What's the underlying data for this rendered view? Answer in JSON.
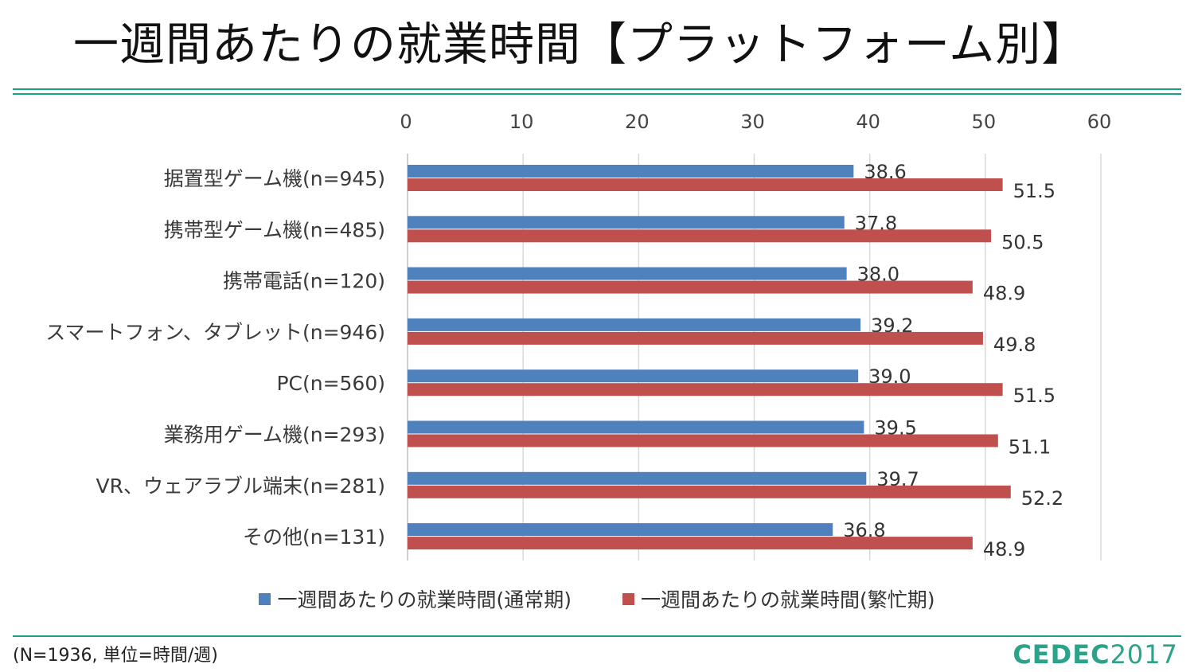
{
  "title": "一週間あたりの就業時間【プラットフォーム別】",
  "footnote": "(N=1936, 単位=時間/週)",
  "logo": {
    "mark": "CEDEC",
    "year": "2017"
  },
  "colors": {
    "normal": "#4f81bd",
    "busy": "#c0504d",
    "rule": "#1aa283",
    "grid": "#d9d9d9"
  },
  "chart_data": {
    "type": "bar",
    "orientation": "horizontal",
    "title": "一週間あたりの就業時間【プラットフォーム別】",
    "xlim": [
      0,
      60
    ],
    "ticks": [
      0,
      10,
      20,
      30,
      40,
      50,
      60
    ],
    "x_axis_position": "top",
    "grid": true,
    "legend_position": "bottom",
    "categories": [
      "据置型ゲーム機(n=945)",
      "携帯型ゲーム機(n=485)",
      "携帯電話(n=120)",
      "スマートフォン、タブレット(n=946)",
      "PC(n=560)",
      "業務用ゲーム機(n=293)",
      "VR、ウェアラブル端末(n=281)",
      "その他(n=131)"
    ],
    "series": [
      {
        "name": "一週間あたりの就業時間(通常期)",
        "color": "#4f81bd",
        "values": [
          38.6,
          37.8,
          38.0,
          39.2,
          39.0,
          39.5,
          39.7,
          36.8
        ],
        "labels": [
          "38.6",
          "37.8",
          "38.0",
          "39.2",
          "39.0",
          "39.5",
          "39.7",
          "36.8"
        ]
      },
      {
        "name": "一週間あたりの就業時間(繁忙期)",
        "color": "#c0504d",
        "values": [
          51.5,
          50.5,
          48.9,
          49.8,
          51.5,
          51.1,
          52.2,
          48.9
        ],
        "labels": [
          "51.5",
          "50.5",
          "48.9",
          "49.8",
          "51.5",
          "51.1",
          "52.2",
          "48.9"
        ]
      }
    ]
  }
}
